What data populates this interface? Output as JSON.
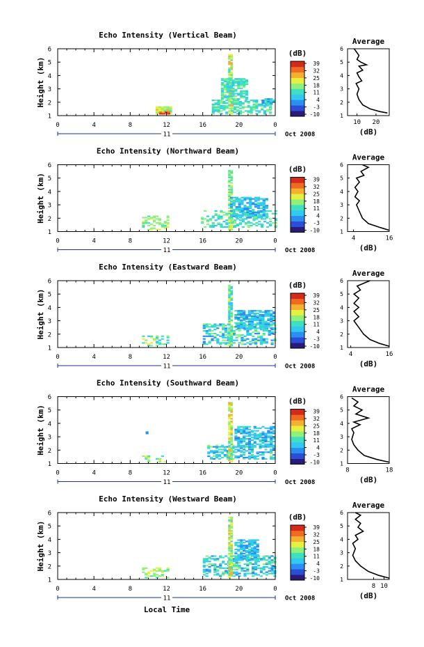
{
  "shared": {
    "colorbar_unit": "(dB)",
    "colorbar_ticks": [
      "39",
      "32",
      "25",
      "18",
      "11",
      "4",
      "-3",
      "-10"
    ],
    "time_ticks": [
      "0",
      "4",
      "8",
      "12",
      "16",
      "20",
      "0"
    ],
    "day_label": "11",
    "date_label": "Oct 2008",
    "avg_title": "Average",
    "avg_xlabel": "(dB)",
    "x_axis_label": "Local Time",
    "height_ticks": [
      "1",
      "2",
      "3",
      "4",
      "5",
      "6"
    ],
    "y_axis_label": "Height (km)",
    "colors": {
      "scale": [
        "#2a1a7a",
        "#2a4fd6",
        "#2a8ff0",
        "#33c8f2",
        "#3fe0c0",
        "#8ff07a",
        "#e6f040",
        "#f5b030",
        "#f06a22",
        "#d42a1a"
      ]
    }
  },
  "chart_data": [
    {
      "type": "heatmap",
      "title": "Echo Intensity (Vertical Beam)",
      "ylabel": "Height (km)",
      "xlim": [
        0,
        24
      ],
      "ylim": [
        1,
        6
      ],
      "clim": [
        -10,
        39
      ],
      "average": {
        "xticks": [
          "10",
          "20"
        ],
        "xlim": [
          5,
          27
        ],
        "points": [
          [
            26,
            1.2
          ],
          [
            22,
            1.3
          ],
          [
            17,
            1.5
          ],
          [
            13,
            1.8
          ],
          [
            11,
            2.2
          ],
          [
            10,
            2.6
          ],
          [
            11,
            3.0
          ],
          [
            9.5,
            3.4
          ],
          [
            12.5,
            3.6
          ],
          [
            11,
            3.9
          ],
          [
            10,
            4.2
          ],
          [
            13,
            4.4
          ],
          [
            11,
            4.7
          ],
          [
            15,
            4.8
          ],
          [
            12,
            5.0
          ],
          [
            10,
            5.2
          ],
          [
            11,
            5.5
          ],
          [
            9.5,
            5.8
          ],
          [
            8.5,
            6.0
          ]
        ]
      }
    },
    {
      "type": "heatmap",
      "title": "Echo Intensity (Northward Beam)",
      "ylabel": "Height (km)",
      "xlim": [
        0,
        24
      ],
      "ylim": [
        1,
        6
      ],
      "clim": [
        -10,
        39
      ],
      "average": {
        "xticks": [
          "4",
          "16"
        ],
        "xlim": [
          2,
          16
        ],
        "points": [
          [
            16,
            1.1
          ],
          [
            13,
            1.3
          ],
          [
            9,
            1.6
          ],
          [
            7,
            2.0
          ],
          [
            6,
            2.5
          ],
          [
            5,
            3.0
          ],
          [
            6,
            3.3
          ],
          [
            4.5,
            3.6
          ],
          [
            5.5,
            4.0
          ],
          [
            4.5,
            4.3
          ],
          [
            6,
            4.7
          ],
          [
            5,
            5.0
          ],
          [
            7.5,
            5.2
          ],
          [
            6.5,
            5.5
          ],
          [
            9,
            5.8
          ],
          [
            7,
            6.0
          ]
        ]
      }
    },
    {
      "type": "heatmap",
      "title": "Echo Intensity (Eastward Beam)",
      "ylabel": "Height (km)",
      "xlim": [
        0,
        24
      ],
      "ylim": [
        1,
        6
      ],
      "clim": [
        -10,
        39
      ],
      "average": {
        "xticks": [
          "4",
          "16"
        ],
        "xlim": [
          3,
          16
        ],
        "points": [
          [
            16,
            1.1
          ],
          [
            13,
            1.3
          ],
          [
            10,
            1.6
          ],
          [
            8,
            2.0
          ],
          [
            6.5,
            2.5
          ],
          [
            5,
            3.0
          ],
          [
            6.5,
            3.3
          ],
          [
            5,
            3.7
          ],
          [
            6.5,
            4.0
          ],
          [
            5,
            4.3
          ],
          [
            6.5,
            4.7
          ],
          [
            5,
            5.0
          ],
          [
            7,
            5.3
          ],
          [
            6,
            5.6
          ],
          [
            9,
            5.9
          ],
          [
            10,
            6.0
          ]
        ]
      }
    },
    {
      "type": "heatmap",
      "title": "Echo Intensity (Southward Beam)",
      "ylabel": "Height (km)",
      "xlim": [
        0,
        24
      ],
      "ylim": [
        1,
        6
      ],
      "clim": [
        -10,
        39
      ],
      "average": {
        "xticks": [
          "8",
          "18"
        ],
        "xlim": [
          8,
          18
        ],
        "points": [
          [
            18,
            1.1
          ],
          [
            15,
            1.3
          ],
          [
            12,
            1.6
          ],
          [
            10.5,
            2.0
          ],
          [
            9.5,
            2.4
          ],
          [
            9,
            2.8
          ],
          [
            9.5,
            3.3
          ],
          [
            9,
            3.6
          ],
          [
            11,
            3.9
          ],
          [
            9.5,
            4.1
          ],
          [
            13,
            4.4
          ],
          [
            10,
            4.7
          ],
          [
            11.5,
            5.0
          ],
          [
            9.5,
            5.3
          ],
          [
            10.5,
            5.6
          ],
          [
            9,
            5.9
          ]
        ]
      }
    },
    {
      "type": "heatmap",
      "title": "Echo Intensity (Westward Beam)",
      "ylabel": "Height (km)",
      "xlim": [
        0,
        24
      ],
      "ylim": [
        1,
        6
      ],
      "clim": [
        -10,
        39
      ],
      "average": {
        "xticks": [
          "8",
          "10"
        ],
        "xlim": [
          3,
          11
        ],
        "points": [
          [
            11,
            1.1
          ],
          [
            9,
            1.3
          ],
          [
            7,
            1.6
          ],
          [
            5.5,
            2.0
          ],
          [
            4.5,
            2.4
          ],
          [
            4,
            2.8
          ],
          [
            4.5,
            3.3
          ],
          [
            4,
            3.7
          ],
          [
            5,
            4.0
          ],
          [
            4.5,
            4.3
          ],
          [
            6,
            4.6
          ],
          [
            5,
            4.9
          ],
          [
            5.5,
            5.2
          ],
          [
            4.5,
            5.5
          ],
          [
            5.5,
            5.8
          ],
          [
            4.5,
            6.0
          ]
        ]
      }
    }
  ]
}
